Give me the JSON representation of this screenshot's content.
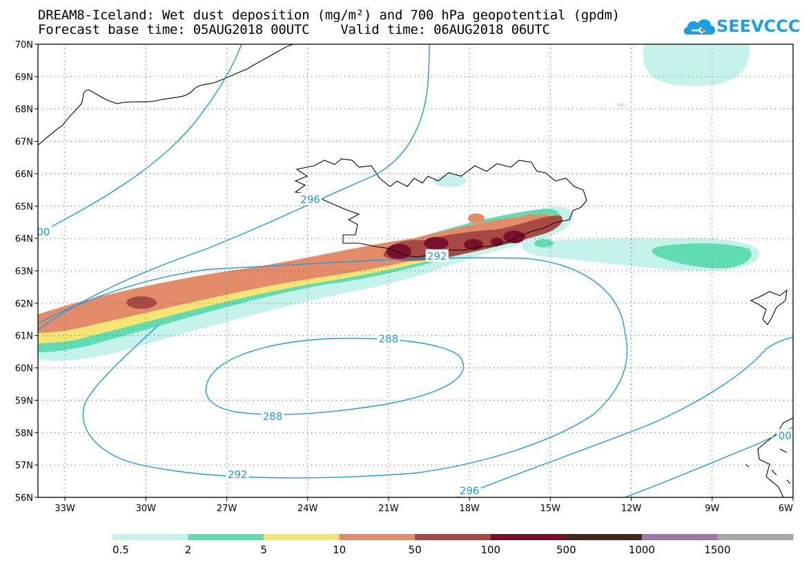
{
  "header": {
    "title_line1": "DREAM8-Iceland: Wet dust deposition (mg/m²) and 700 hPa geopotential (gpdm)",
    "title_line2": "Forecast base time: 05AUG2018 00UTC    Valid time: 06AUG2018 06UTC",
    "logo_text": "SEEVCCC",
    "logo_icon": "cloud-icon",
    "logo_color": "#1aa0e8"
  },
  "map": {
    "lon_range": [
      -34.0,
      -6.0
    ],
    "lat_range": [
      56.0,
      70.0
    ],
    "lon_ticks": [
      {
        "value": -33,
        "label": "33W"
      },
      {
        "value": -30,
        "label": "30W"
      },
      {
        "value": -27,
        "label": "27W"
      },
      {
        "value": -24,
        "label": "24W"
      },
      {
        "value": -21,
        "label": "21W"
      },
      {
        "value": -18,
        "label": "18W"
      },
      {
        "value": -15,
        "label": "15W"
      },
      {
        "value": -12,
        "label": "12W"
      },
      {
        "value": -9,
        "label": "9W"
      },
      {
        "value": -6,
        "label": "6W"
      }
    ],
    "lat_ticks": [
      {
        "value": 56,
        "label": "56N"
      },
      {
        "value": 57,
        "label": "57N"
      },
      {
        "value": 58,
        "label": "58N"
      },
      {
        "value": 59,
        "label": "59N"
      },
      {
        "value": 60,
        "label": "60N"
      },
      {
        "value": 61,
        "label": "61N"
      },
      {
        "value": 62,
        "label": "62N"
      },
      {
        "value": 63,
        "label": "63N"
      },
      {
        "value": 64,
        "label": "64N"
      },
      {
        "value": 65,
        "label": "65N"
      },
      {
        "value": 66,
        "label": "66N"
      },
      {
        "value": 67,
        "label": "67N"
      },
      {
        "value": 68,
        "label": "68N"
      },
      {
        "value": 69,
        "label": "69N"
      },
      {
        "value": 70,
        "label": "70N"
      }
    ],
    "grid": "dotted",
    "contour_color": "#1a9be6",
    "contour_labels": [
      {
        "text": "296",
        "lon": -23.9,
        "lat": 65.2
      },
      {
        "text": "292",
        "lon": -19.2,
        "lat": 63.45
      },
      {
        "text": "288",
        "lon": -21.0,
        "lat": 60.9
      },
      {
        "text": "288",
        "lon": -25.3,
        "lat": 58.5
      },
      {
        "text": "292",
        "lon": -26.6,
        "lat": 56.7
      },
      {
        "text": "296",
        "lon": -18.0,
        "lat": 56.2
      },
      {
        "text": "00",
        "lon": -33.8,
        "lat": 64.2
      },
      {
        "text": "00",
        "lon": -6.3,
        "lat": 57.9
      }
    ]
  },
  "legend": {
    "bins": [
      {
        "label": "0.5",
        "color": "#c5f2ea"
      },
      {
        "label": "2",
        "color": "#5fdcb1"
      },
      {
        "label": "5",
        "color": "#f6e573"
      },
      {
        "label": "10",
        "color": "#e48c6a"
      },
      {
        "label": "50",
        "color": "#a84a44"
      },
      {
        "label": "100",
        "color": "#7a0f2c"
      },
      {
        "label": "500",
        "color": "#3f2a20"
      },
      {
        "label": "1000",
        "color": "#9b7aa6"
      },
      {
        "label": "1500",
        "color": "#a8a8a8"
      }
    ]
  }
}
